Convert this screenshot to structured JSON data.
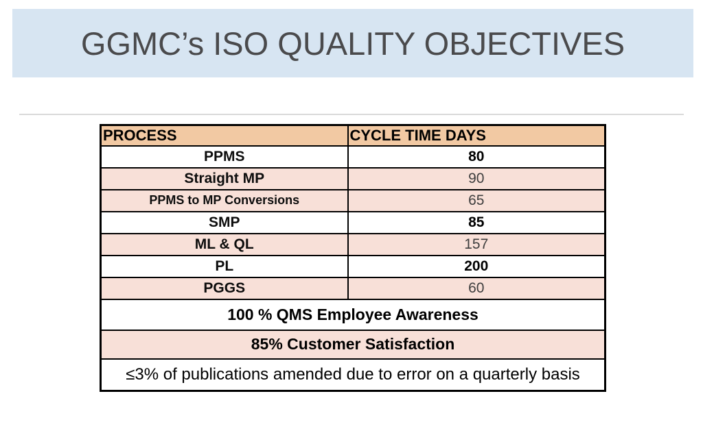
{
  "slide": {
    "title": "GGMC’s ISO QUALITY OBJECTIVES"
  },
  "table": {
    "headers": [
      "PROCESS",
      "CYCLE TIME DAYS"
    ],
    "rows": [
      {
        "process": "PPMS",
        "value": "80"
      },
      {
        "process": "Straight MP",
        "value": "90"
      },
      {
        "process": "PPMS to MP Conversions",
        "value": "65"
      },
      {
        "process": "SMP",
        "value": "85"
      },
      {
        "process": "ML & QL",
        "value": "157"
      },
      {
        "process": "PL",
        "value": "200"
      },
      {
        "process": "PGGS",
        "value": "60"
      }
    ],
    "summary_rows": [
      "100 % QMS Employee Awareness",
      "85% Customer Satisfaction",
      "≤3% of publications amended due to error on a quarterly basis"
    ]
  },
  "colors": {
    "banner_fill": "#d7e5f2",
    "title_text": "#4a4a4c",
    "header_fill": "#f2c9a3",
    "stripe_fill": "#f8e0d8",
    "border": "#000000",
    "divider_rule": "#d9d9d9"
  }
}
